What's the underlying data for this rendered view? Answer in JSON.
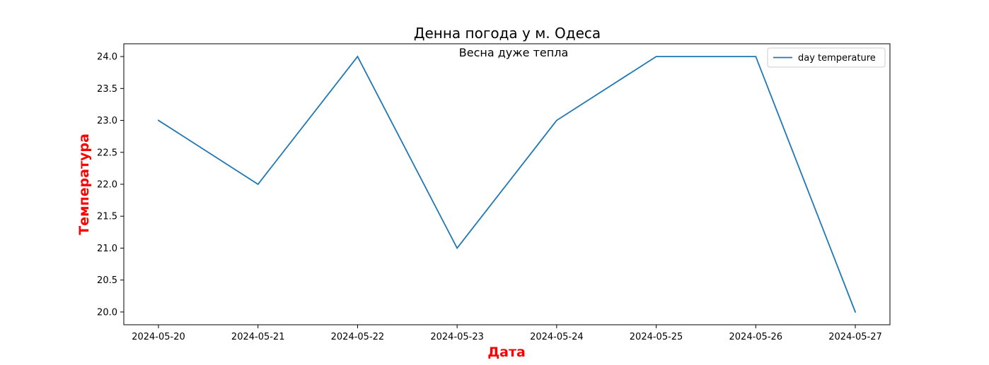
{
  "chart_data": {
    "type": "line",
    "title": "Денна погода у м. Одеса",
    "subtitle": "Весна дуже тепла",
    "xlabel": "Дата",
    "ylabel": "Температура",
    "axis_label_color": "#ff0000",
    "categories": [
      "2024-05-20",
      "2024-05-21",
      "2024-05-22",
      "2024-05-23",
      "2024-05-24",
      "2024-05-25",
      "2024-05-26",
      "2024-05-27"
    ],
    "series": [
      {
        "name": "day temperature",
        "color": "#1f77b4",
        "values": [
          23.0,
          22.0,
          24.0,
          21.0,
          23.0,
          24.0,
          24.0,
          20.0
        ]
      }
    ],
    "ylim": [
      19.8,
      24.2
    ],
    "yticks": [
      "20.0",
      "20.5",
      "21.0",
      "21.5",
      "22.0",
      "22.5",
      "23.0",
      "23.5",
      "24.0"
    ],
    "grid": false,
    "legend_position": "top-right"
  }
}
